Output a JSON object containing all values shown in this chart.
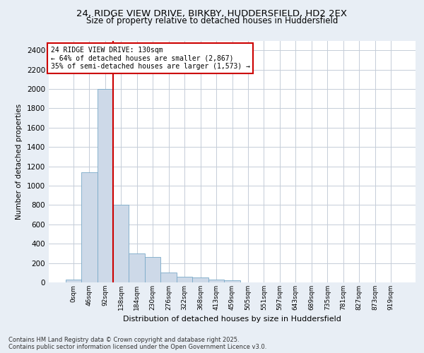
{
  "title_line1": "24, RIDGE VIEW DRIVE, BIRKBY, HUDDERSFIELD, HD2 2EX",
  "title_line2": "Size of property relative to detached houses in Huddersfield",
  "xlabel": "Distribution of detached houses by size in Huddersfield",
  "ylabel": "Number of detached properties",
  "categories": [
    "0sqm",
    "46sqm",
    "92sqm",
    "138sqm",
    "184sqm",
    "230sqm",
    "276sqm",
    "322sqm",
    "368sqm",
    "413sqm",
    "459sqm",
    "505sqm",
    "551sqm",
    "597sqm",
    "643sqm",
    "689sqm",
    "735sqm",
    "781sqm",
    "827sqm",
    "873sqm",
    "919sqm"
  ],
  "values": [
    30,
    1140,
    2000,
    800,
    300,
    260,
    100,
    60,
    50,
    30,
    20,
    0,
    0,
    0,
    0,
    0,
    0,
    0,
    0,
    0,
    0
  ],
  "bar_color": "#cdd9e8",
  "bar_edge_color": "#7aaac8",
  "vline_x_index": 2.5,
  "vline_color": "#cc0000",
  "ylim": [
    0,
    2500
  ],
  "yticks": [
    0,
    200,
    400,
    600,
    800,
    1000,
    1200,
    1400,
    1600,
    1800,
    2000,
    2200,
    2400
  ],
  "annotation_box_text": "24 RIDGE VIEW DRIVE: 130sqm\n← 64% of detached houses are smaller (2,867)\n35% of semi-detached houses are larger (1,573) →",
  "annotation_box_color": "#cc0000",
  "footer_line1": "Contains HM Land Registry data © Crown copyright and database right 2025.",
  "footer_line2": "Contains public sector information licensed under the Open Government Licence v3.0.",
  "bg_color": "#e8eef5",
  "plot_bg_color": "#ffffff",
  "grid_color": "#c5cdd8"
}
